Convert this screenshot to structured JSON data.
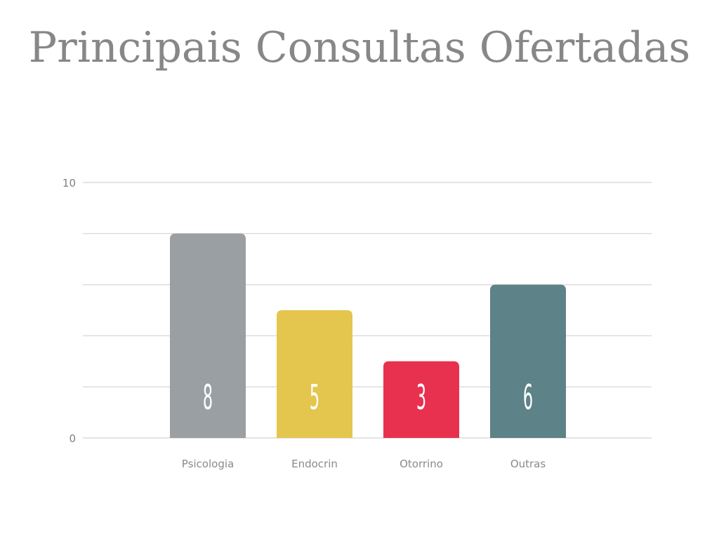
{
  "slide": {
    "title": "Principais Consultas Ofertadas"
  },
  "chart_data": {
    "type": "bar",
    "title": "",
    "xlabel": "",
    "ylabel": "",
    "categories": [
      "Psicologia",
      "Endocrin",
      "Otorrino",
      "Outras"
    ],
    "values": [
      8,
      5,
      3,
      6
    ],
    "data_labels": [
      "8",
      "5",
      "3",
      "6"
    ],
    "colors": [
      "#9a9fa3",
      "#e4c64e",
      "#e8314f",
      "#5d8287"
    ],
    "ylim": [
      0,
      10
    ],
    "y_tick_labels": [
      "0",
      "10"
    ],
    "gridlines": true,
    "legend": "none"
  }
}
